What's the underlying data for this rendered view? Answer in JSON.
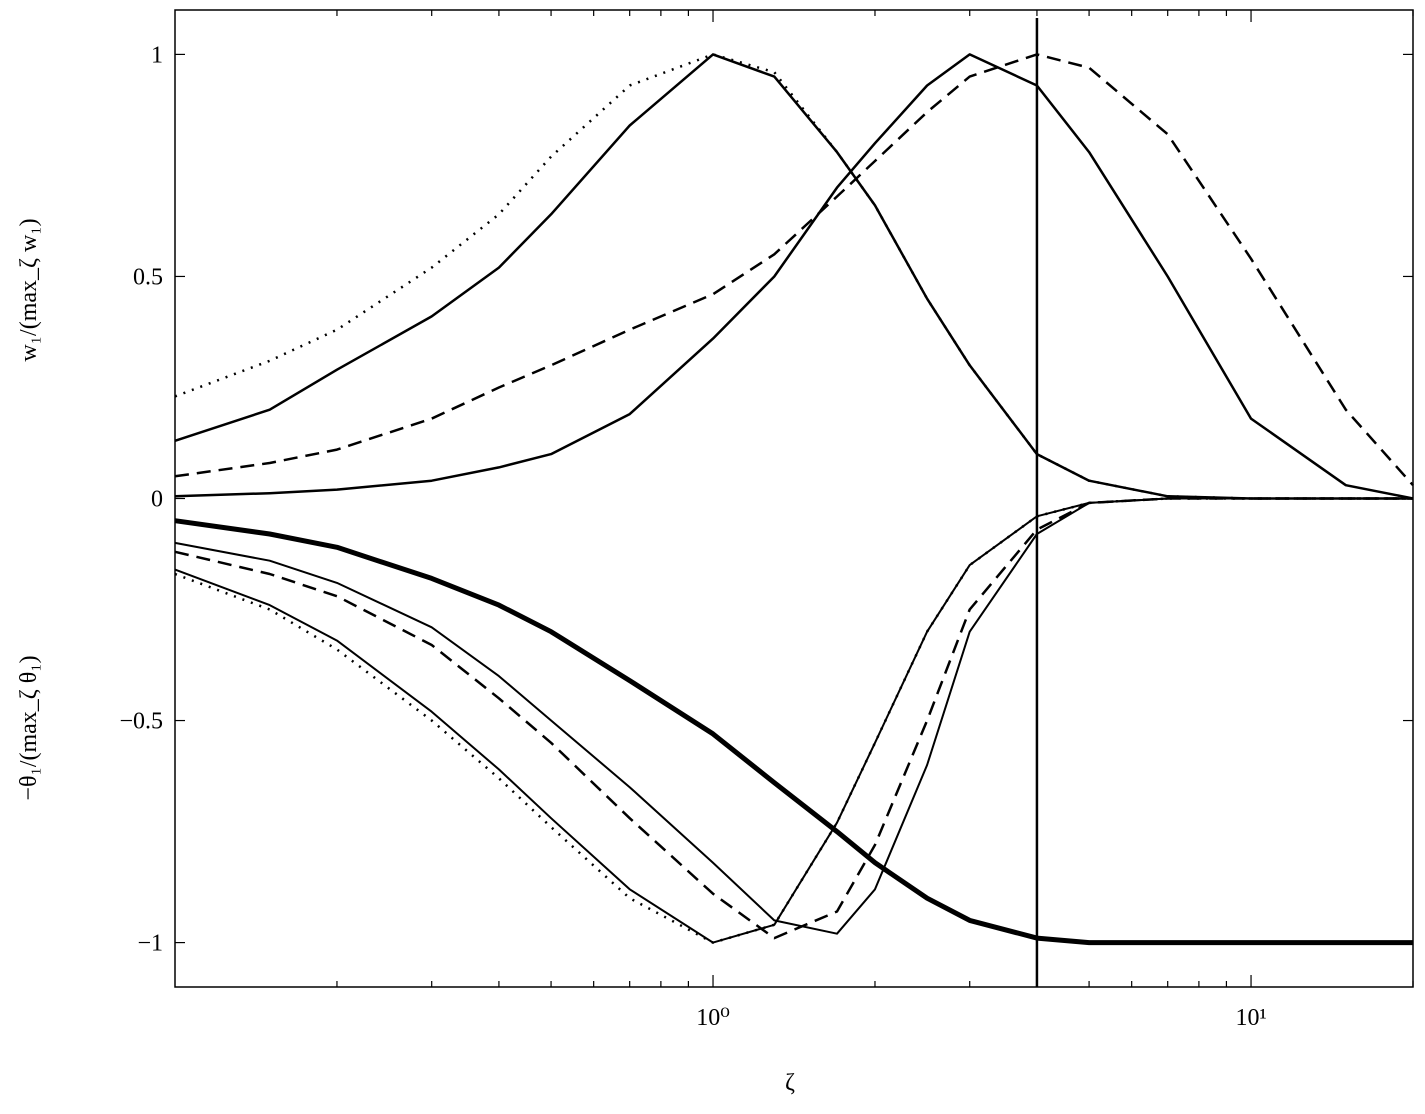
{
  "chart_data": {
    "type": "line",
    "xlabel": "ζ",
    "ylabel_upper": "w₁/(max_ζ w₁)",
    "ylabel_lower": "−θ₁/(max_ζ θ₁)",
    "xscale": "log",
    "xlim": [
      0.1,
      20
    ],
    "ylim": [
      -1.1,
      1.1
    ],
    "xticks": [
      {
        "value": 1,
        "label": "10⁰"
      },
      {
        "value": 10,
        "label": "10¹"
      }
    ],
    "xminorticks": [
      0.2,
      0.3,
      0.4,
      0.5,
      0.6,
      0.7,
      0.8,
      0.9,
      2,
      3,
      4,
      5,
      6,
      7,
      8,
      9,
      20
    ],
    "yticks": [
      {
        "value": -1,
        "label": "−1"
      },
      {
        "value": -0.5,
        "label": "−0.5"
      },
      0,
      0.5,
      1
    ],
    "vline": 4,
    "x": [
      0.1,
      0.15,
      0.2,
      0.3,
      0.4,
      0.5,
      0.7,
      1,
      1.3,
      1.7,
      2,
      2.5,
      3,
      4,
      5,
      7,
      10,
      15,
      20
    ],
    "series": [
      {
        "color": "#000000",
        "style": "dotted",
        "width": 2.5,
        "values": [
          0.23,
          0.31,
          0.38,
          0.52,
          0.64,
          0.77,
          0.93,
          1.0,
          0.96,
          0.78,
          0.66,
          0.45,
          0.3,
          0.1,
          0.04,
          0.005,
          0,
          0,
          0
        ]
      },
      {
        "color": "#000000",
        "style": "solid",
        "width": 2.5,
        "values": [
          0.13,
          0.2,
          0.29,
          0.41,
          0.52,
          0.64,
          0.84,
          1.0,
          0.95,
          0.78,
          0.66,
          0.45,
          0.3,
          0.1,
          0.04,
          0.005,
          0,
          0,
          0
        ]
      },
      {
        "color": "#000000",
        "style": "dashed",
        "width": 2.5,
        "values": [
          0.05,
          0.08,
          0.11,
          0.18,
          0.25,
          0.3,
          0.38,
          0.46,
          0.55,
          0.68,
          0.76,
          0.87,
          0.95,
          1.0,
          0.97,
          0.82,
          0.54,
          0.2,
          0.03
        ]
      },
      {
        "color": "#000000",
        "style": "solid",
        "width": 2.5,
        "values": [
          0.005,
          0.012,
          0.02,
          0.04,
          0.07,
          0.1,
          0.19,
          0.36,
          0.5,
          0.7,
          0.8,
          0.93,
          1.0,
          0.93,
          0.78,
          0.5,
          0.18,
          0.03,
          0
        ]
      },
      {
        "color": "#000000",
        "style": "solid",
        "width": 5,
        "values": [
          -0.05,
          -0.08,
          -0.11,
          -0.18,
          -0.24,
          -0.3,
          -0.41,
          -0.53,
          -0.64,
          -0.75,
          -0.82,
          -0.9,
          -0.95,
          -0.99,
          -1,
          -1,
          -1,
          -1,
          -1
        ]
      },
      {
        "color": "#000000",
        "style": "dotted",
        "width": 2.5,
        "values": [
          -0.17,
          -0.25,
          -0.34,
          -0.5,
          -0.63,
          -0.74,
          -0.9,
          -1.0,
          -0.96,
          -0.73,
          -0.55,
          -0.3,
          -0.15,
          -0.04,
          -0.01,
          0,
          0,
          0,
          0
        ]
      },
      {
        "color": "#000000",
        "style": "solid",
        "width": 2,
        "values": [
          -0.16,
          -0.24,
          -0.32,
          -0.48,
          -0.61,
          -0.72,
          -0.88,
          -1.0,
          -0.96,
          -0.73,
          -0.55,
          -0.3,
          -0.15,
          -0.04,
          -0.01,
          0,
          0,
          0,
          0
        ]
      },
      {
        "color": "#000000",
        "style": "dashed",
        "width": 2.5,
        "values": [
          -0.12,
          -0.17,
          -0.22,
          -0.33,
          -0.45,
          -0.55,
          -0.72,
          -0.89,
          -0.99,
          -0.93,
          -0.78,
          -0.5,
          -0.25,
          -0.07,
          -0.01,
          0,
          0,
          0,
          0
        ]
      },
      {
        "color": "#000000",
        "style": "solid",
        "width": 2,
        "values": [
          -0.1,
          -0.14,
          -0.19,
          -0.29,
          -0.4,
          -0.5,
          -0.65,
          -0.82,
          -0.95,
          -0.98,
          -0.88,
          -0.6,
          -0.3,
          -0.08,
          -0.01,
          0,
          0,
          0,
          0
        ]
      }
    ]
  }
}
